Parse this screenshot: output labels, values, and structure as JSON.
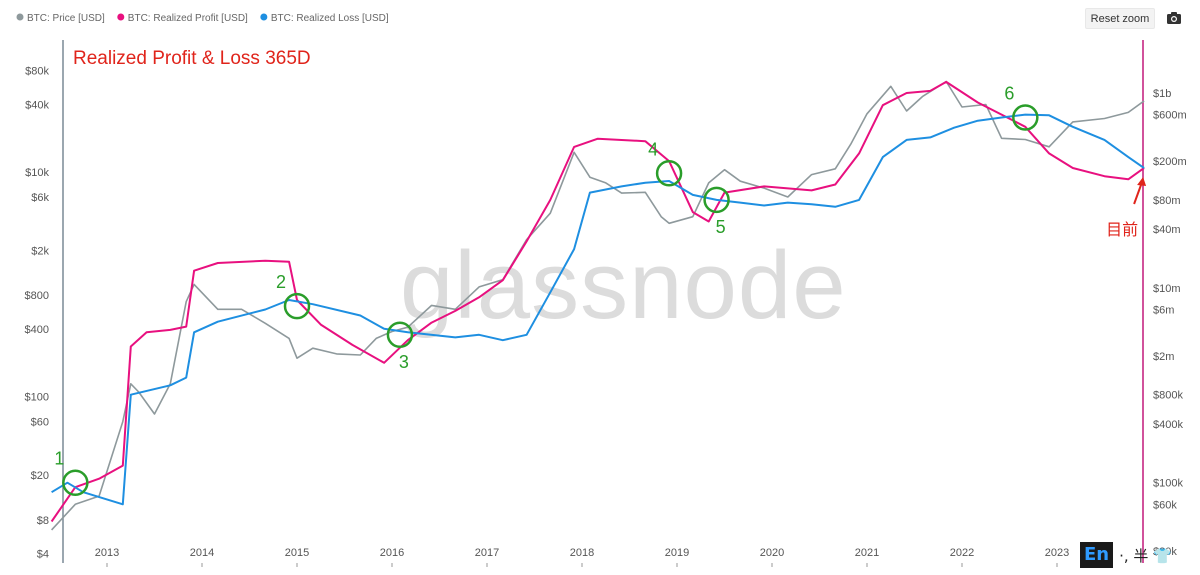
{
  "toolbar": {
    "reset_zoom_label": "Reset zoom",
    "camera_icon": "camera-icon"
  },
  "ime": {
    "en": "En",
    "rest": "·, 半 👕"
  },
  "watermark": "glassnode",
  "colors": {
    "price": "#8e999c",
    "realized_profit": "#e8107f",
    "realized_loss": "#1e8fe1",
    "title": "#e0241b",
    "annotation": "#2a9d2a",
    "right_axis_line": "#c2187a"
  },
  "chart_data": {
    "type": "line",
    "title": "Realized Profit & Loss 365D",
    "legend": [
      "BTC: Price [USD]",
      "BTC: Realized Profit [USD]",
      "BTC: Realized Loss [USD]"
    ],
    "legend_placement": "top-left",
    "x_ticks": [
      "2013",
      "2014",
      "2015",
      "2016",
      "2017",
      "2018",
      "2019",
      "2020",
      "2021",
      "2022",
      "2023"
    ],
    "y_left": {
      "scale": "log",
      "unit": "USD",
      "range": [
        3.3,
        150000
      ],
      "ticks": [
        {
          "label": "$80k",
          "value": 80000
        },
        {
          "label": "$40k",
          "value": 40000
        },
        {
          "label": "$10k",
          "value": 10000
        },
        {
          "label": "$6k",
          "value": 6000
        },
        {
          "label": "$2k",
          "value": 2000
        },
        {
          "label": "$800",
          "value": 800
        },
        {
          "label": "$400",
          "value": 400
        },
        {
          "label": "$100",
          "value": 100
        },
        {
          "label": "$60",
          "value": 60
        },
        {
          "label": "$20",
          "value": 20
        },
        {
          "label": "$8",
          "value": 8
        },
        {
          "label": "$4",
          "value": 4
        }
      ]
    },
    "y_right": {
      "scale": "log",
      "unit": "USD",
      "range": [
        15000,
        3500000000
      ],
      "ticks": [
        {
          "label": "$1b",
          "value": 1000000000
        },
        {
          "label": "$600m",
          "value": 600000000
        },
        {
          "label": "$200m",
          "value": 200000000
        },
        {
          "label": "$80m",
          "value": 80000000
        },
        {
          "label": "$40m",
          "value": 40000000
        },
        {
          "label": "$10m",
          "value": 10000000
        },
        {
          "label": "$6m",
          "value": 6000000
        },
        {
          "label": "$2m",
          "value": 2000000
        },
        {
          "label": "$800k",
          "value": 800000
        },
        {
          "label": "$400k",
          "value": 400000
        },
        {
          "label": "$100k",
          "value": 100000
        },
        {
          "label": "$60k",
          "value": 60000
        },
        {
          "label": "$20k",
          "value": 20000
        }
      ]
    },
    "series": [
      {
        "name": "BTC: Price [USD]",
        "axis": "left",
        "points": [
          [
            "2012-06",
            6.5
          ],
          [
            "2012-09",
            11
          ],
          [
            "2012-12",
            13
          ],
          [
            "2013-03",
            60
          ],
          [
            "2013-04",
            130
          ],
          [
            "2013-05",
            110
          ],
          [
            "2013-07",
            70
          ],
          [
            "2013-09",
            130
          ],
          [
            "2013-11",
            700
          ],
          [
            "2013-12",
            1000
          ],
          [
            "2014-03",
            600
          ],
          [
            "2014-06",
            600
          ],
          [
            "2014-09",
            450
          ],
          [
            "2014-12",
            330
          ],
          [
            "2015-01",
            220
          ],
          [
            "2015-03",
            270
          ],
          [
            "2015-06",
            240
          ],
          [
            "2015-09",
            235
          ],
          [
            "2015-11",
            330
          ],
          [
            "2016-01",
            380
          ],
          [
            "2016-03",
            415
          ],
          [
            "2016-06",
            650
          ],
          [
            "2016-09",
            600
          ],
          [
            "2016-12",
            950
          ],
          [
            "2017-03",
            1100
          ],
          [
            "2017-06",
            2500
          ],
          [
            "2017-09",
            4300
          ],
          [
            "2017-12",
            15000
          ],
          [
            "2018-02",
            9000
          ],
          [
            "2018-04",
            8000
          ],
          [
            "2018-06",
            6500
          ],
          [
            "2018-09",
            6600
          ],
          [
            "2018-11",
            4000
          ],
          [
            "2018-12",
            3500
          ],
          [
            "2019-03",
            4000
          ],
          [
            "2019-05",
            8000
          ],
          [
            "2019-07",
            10500
          ],
          [
            "2019-09",
            8300
          ],
          [
            "2019-12",
            7200
          ],
          [
            "2020-03",
            6000
          ],
          [
            "2020-06",
            9500
          ],
          [
            "2020-09",
            10700
          ],
          [
            "2020-11",
            18000
          ],
          [
            "2021-01",
            33000
          ],
          [
            "2021-04",
            58000
          ],
          [
            "2021-06",
            35000
          ],
          [
            "2021-08",
            47000
          ],
          [
            "2021-11",
            64000
          ],
          [
            "2022-01",
            38000
          ],
          [
            "2022-04",
            40000
          ],
          [
            "2022-06",
            20000
          ],
          [
            "2022-09",
            19500
          ],
          [
            "2022-12",
            16800
          ],
          [
            "2023-03",
            28000
          ],
          [
            "2023-07",
            30000
          ],
          [
            "2023-10",
            34000
          ],
          [
            "2023-12",
            43000
          ]
        ]
      },
      {
        "name": "BTC: Realized Profit [USD]",
        "axis": "right",
        "points": [
          [
            "2012-06",
            40000
          ],
          [
            "2012-09",
            90000
          ],
          [
            "2012-12",
            110000
          ],
          [
            "2013-03",
            150000
          ],
          [
            "2013-04",
            2500000
          ],
          [
            "2013-06",
            3500000
          ],
          [
            "2013-09",
            3700000
          ],
          [
            "2013-11",
            4000000
          ],
          [
            "2013-12",
            15000000
          ],
          [
            "2014-03",
            18000000
          ],
          [
            "2014-09",
            19000000
          ],
          [
            "2014-12",
            18500000
          ],
          [
            "2015-01",
            7500000
          ],
          [
            "2015-04",
            4200000
          ],
          [
            "2015-08",
            2600000
          ],
          [
            "2015-12",
            1700000
          ],
          [
            "2016-03",
            2900000
          ],
          [
            "2016-06",
            4400000
          ],
          [
            "2016-09",
            5800000
          ],
          [
            "2016-12",
            8000000
          ],
          [
            "2017-03",
            12000000
          ],
          [
            "2017-06",
            30000000
          ],
          [
            "2017-09",
            80000000
          ],
          [
            "2017-12",
            280000000
          ],
          [
            "2018-03",
            340000000
          ],
          [
            "2018-09",
            320000000
          ],
          [
            "2018-12",
            200000000
          ],
          [
            "2019-03",
            60000000
          ],
          [
            "2019-05",
            48000000
          ],
          [
            "2019-07",
            95000000
          ],
          [
            "2019-12",
            110000000
          ],
          [
            "2020-06",
            100000000
          ],
          [
            "2020-09",
            115000000
          ],
          [
            "2020-12",
            240000000
          ],
          [
            "2021-03",
            750000000
          ],
          [
            "2021-06",
            1000000000
          ],
          [
            "2021-09",
            1050000000
          ],
          [
            "2021-11",
            1300000000
          ],
          [
            "2022-03",
            800000000
          ],
          [
            "2022-06",
            600000000
          ],
          [
            "2022-09",
            450000000
          ],
          [
            "2022-12",
            240000000
          ],
          [
            "2023-03",
            170000000
          ],
          [
            "2023-07",
            140000000
          ],
          [
            "2023-10",
            130000000
          ],
          [
            "2023-12",
            170000000
          ]
        ]
      },
      {
        "name": "BTC: Realized Loss [USD]",
        "axis": "right",
        "points": [
          [
            "2012-06",
            80000
          ],
          [
            "2012-08",
            100000
          ],
          [
            "2012-10",
            80000
          ],
          [
            "2013-03",
            60000
          ],
          [
            "2013-04",
            800000
          ],
          [
            "2013-09",
            1000000
          ],
          [
            "2013-11",
            1200000
          ],
          [
            "2013-12",
            3500000
          ],
          [
            "2014-03",
            4500000
          ],
          [
            "2014-09",
            6000000
          ],
          [
            "2014-12",
            7500000
          ],
          [
            "2015-03",
            6800000
          ],
          [
            "2015-09",
            5200000
          ],
          [
            "2015-12",
            3800000
          ],
          [
            "2016-03",
            3500000
          ],
          [
            "2016-09",
            3100000
          ],
          [
            "2016-12",
            3300000
          ],
          [
            "2017-03",
            2900000
          ],
          [
            "2017-06",
            3300000
          ],
          [
            "2017-09",
            9000000
          ],
          [
            "2017-12",
            25000000
          ],
          [
            "2018-02",
            95000000
          ],
          [
            "2018-06",
            110000000
          ],
          [
            "2018-09",
            120000000
          ],
          [
            "2018-12",
            125000000
          ],
          [
            "2019-03",
            90000000
          ],
          [
            "2019-06",
            80000000
          ],
          [
            "2019-09",
            75000000
          ],
          [
            "2019-12",
            70000000
          ],
          [
            "2020-03",
            75000000
          ],
          [
            "2020-06",
            72000000
          ],
          [
            "2020-09",
            68000000
          ],
          [
            "2020-12",
            80000000
          ],
          [
            "2021-03",
            220000000
          ],
          [
            "2021-06",
            330000000
          ],
          [
            "2021-09",
            350000000
          ],
          [
            "2021-12",
            440000000
          ],
          [
            "2022-03",
            520000000
          ],
          [
            "2022-06",
            560000000
          ],
          [
            "2022-09",
            600000000
          ],
          [
            "2022-12",
            590000000
          ],
          [
            "2023-03",
            450000000
          ],
          [
            "2023-07",
            330000000
          ],
          [
            "2023-10",
            220000000
          ],
          [
            "2023-12",
            170000000
          ]
        ]
      }
    ],
    "annotations": [
      {
        "label": "1",
        "date": "2012-09",
        "value": 100000,
        "axis": "right"
      },
      {
        "label": "2",
        "date": "2015-01",
        "value": 6500000,
        "axis": "right"
      },
      {
        "label": "3",
        "date": "2016-02",
        "value": 3300000,
        "axis": "right"
      },
      {
        "label": "4",
        "date": "2018-12",
        "value": 150000000,
        "axis": "right"
      },
      {
        "label": "5",
        "date": "2019-06",
        "value": 80000000,
        "axis": "right"
      },
      {
        "label": "6",
        "date": "2022-09",
        "value": 560000000,
        "axis": "right"
      }
    ],
    "current_marker": {
      "label": "目前",
      "date": "2023-12",
      "value": 170000000,
      "axis": "right"
    }
  }
}
